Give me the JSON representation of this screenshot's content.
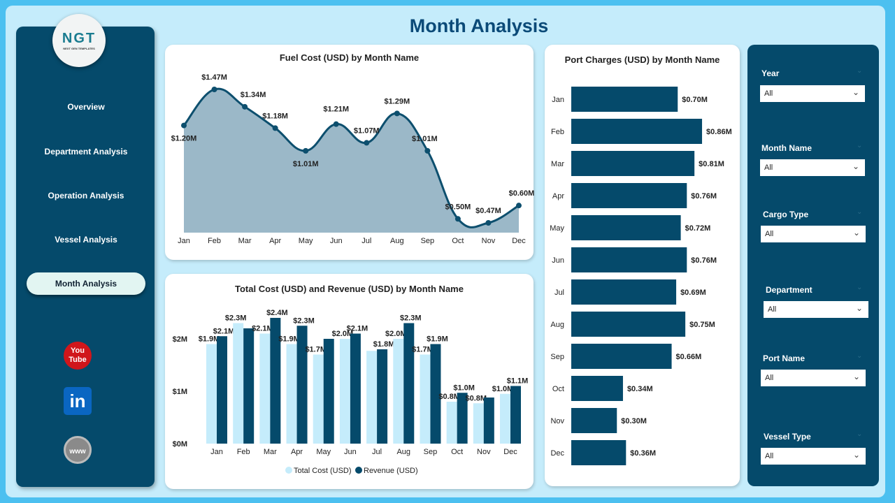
{
  "title": "Month Analysis",
  "logo": {
    "text": "NGT",
    "sub": "NEXT GEN TEMPLATES"
  },
  "nav": [
    {
      "label": "Overview"
    },
    {
      "label": "Department Analysis"
    },
    {
      "label": "Operation Analysis"
    },
    {
      "label": "Vessel Analysis"
    },
    {
      "label": "Month Analysis",
      "active": true
    }
  ],
  "social": [
    {
      "icon": "youtube-icon",
      "label": "You Tube"
    },
    {
      "icon": "linkedin-icon",
      "label": "in"
    },
    {
      "icon": "globe-icon",
      "label": "www"
    }
  ],
  "months": [
    "Jan",
    "Feb",
    "Mar",
    "Apr",
    "May",
    "Jun",
    "Jul",
    "Aug",
    "Sep",
    "Oct",
    "Nov",
    "Dec"
  ],
  "chart_data": [
    {
      "type": "area",
      "title": "Fuel Cost (USD) by Month Name",
      "categories": [
        "Jan",
        "Feb",
        "Mar",
        "Apr",
        "May",
        "Jun",
        "Jul",
        "Aug",
        "Sep",
        "Oct",
        "Nov",
        "Dec"
      ],
      "values": [
        1.2,
        1.47,
        1.34,
        1.18,
        1.01,
        1.21,
        1.07,
        1.29,
        1.01,
        0.5,
        0.47,
        0.6
      ],
      "labels": [
        "$1.20M",
        "$1.47M",
        "$1.34M",
        "$1.18M",
        "$1.01M",
        "$1.21M",
        "$1.07M",
        "$1.29M",
        "$1.01M",
        "$0.50M",
        "$0.47M",
        "$0.60M"
      ],
      "color": "#0d4f6e",
      "fill": "#9bb8c8"
    },
    {
      "type": "bar",
      "title": "Total Cost (USD) and Revenue (USD) by Month Name",
      "categories": [
        "Jan",
        "Feb",
        "Mar",
        "Apr",
        "May",
        "Jun",
        "Jul",
        "Aug",
        "Sep",
        "Oct",
        "Nov",
        "Dec"
      ],
      "yticks": [
        "$0M",
        "$1M",
        "$2M"
      ],
      "ylim": [
        0,
        2.6
      ],
      "series": [
        {
          "name": "Total Cost (USD)",
          "color": "#c5ecfb",
          "values": [
            1.9,
            2.3,
            2.1,
            1.9,
            1.7,
            2.0,
            1.77,
            2.0,
            1.7,
            0.8,
            0.77,
            0.95
          ],
          "labels": [
            "$1.9M",
            "$2.3M",
            "$2.1M",
            "$1.9M",
            "$1.7M",
            "$2.0M",
            "",
            "$2.0M",
            "$1.7M",
            "$0.8M",
            "$0.8M",
            "$1.0M"
          ]
        },
        {
          "name": "Revenue (USD)",
          "color": "#054a6b",
          "values": [
            2.05,
            2.2,
            2.4,
            2.25,
            2.0,
            2.1,
            1.8,
            2.3,
            1.9,
            0.97,
            0.88,
            1.1
          ],
          "labels": [
            "$2.1M",
            "",
            "$2.4M",
            "$2.3M",
            "",
            "$2.1M",
            "$1.8M",
            "$2.3M",
            "$1.9M",
            "$1.0M",
            "",
            "$1.1M"
          ]
        }
      ]
    },
    {
      "type": "bar",
      "orientation": "horizontal",
      "title": "Port Charges (USD) by Month Name",
      "categories": [
        "Jan",
        "Feb",
        "Mar",
        "Apr",
        "May",
        "Jun",
        "Jul",
        "Aug",
        "Sep",
        "Oct",
        "Nov",
        "Dec"
      ],
      "values": [
        0.7,
        0.86,
        0.81,
        0.76,
        0.72,
        0.76,
        0.69,
        0.75,
        0.66,
        0.34,
        0.3,
        0.36
      ],
      "labels": [
        "$0.70M",
        "$0.86M",
        "$0.81M",
        "$0.76M",
        "$0.72M",
        "$0.76M",
        "$0.69M",
        "$0.75M",
        "$0.66M",
        "$0.34M",
        "$0.30M",
        "$0.36M"
      ],
      "color": "#054a6b"
    }
  ],
  "filters": [
    {
      "label": "Year",
      "value": "All"
    },
    {
      "label": "Month Name",
      "value": "All"
    },
    {
      "label": "Cargo Type",
      "value": "All"
    },
    {
      "label": "Department",
      "value": "All"
    },
    {
      "label": "Port Name",
      "value": "All"
    },
    {
      "label": "Vessel Type",
      "value": "All"
    }
  ]
}
